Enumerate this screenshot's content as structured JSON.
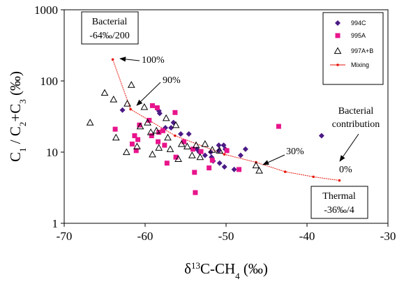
{
  "chart_data": {
    "type": "scatter",
    "x_axis": {
      "range": [
        -70,
        -30
      ],
      "ticks": [
        -70,
        -60,
        -50,
        -40,
        -30
      ],
      "tick_labels": [
        "-70",
        "-60",
        "-50",
        "-40",
        "-30"
      ],
      "label": "δ13C-CH4 (‰)"
    },
    "y_axis": {
      "scale": "log",
      "range": [
        1,
        1000
      ],
      "ticks": [
        1,
        10,
        100,
        1000
      ],
      "tick_labels": [
        "1",
        "10",
        "100",
        "1000"
      ],
      "label": "C1 / C2+C3 (‰)"
    },
    "grid": false,
    "legend": "top-right",
    "series": [
      {
        "name": "994C",
        "marker": "diamond",
        "color": "#4b1a86",
        "points": [
          [
            -62.8,
            39
          ],
          [
            -58.3,
            38
          ],
          [
            -58.2,
            35
          ],
          [
            -57.5,
            22
          ],
          [
            -56.5,
            26
          ],
          [
            -56.8,
            22
          ],
          [
            -55.6,
            18
          ],
          [
            -54.6,
            18
          ],
          [
            -53.6,
            11
          ],
          [
            -53.3,
            10
          ],
          [
            -52.6,
            9
          ],
          [
            -51.9,
            10
          ],
          [
            -51.8,
            8.5
          ],
          [
            -51.6,
            7.5
          ],
          [
            -50.9,
            12.5
          ],
          [
            -50.9,
            10.5
          ],
          [
            -50.8,
            7
          ],
          [
            -50.3,
            12.5
          ],
          [
            -50.1,
            11
          ],
          [
            -50.2,
            6.2
          ],
          [
            -49.0,
            5.7
          ],
          [
            -48.2,
            9
          ],
          [
            -47.6,
            11
          ],
          [
            -38.2,
            17
          ]
        ]
      },
      {
        "name": "995A",
        "marker": "square",
        "color": "#e8148c",
        "points": [
          [
            -63.7,
            21
          ],
          [
            -61.6,
            13
          ],
          [
            -61.3,
            17
          ],
          [
            -60.9,
            15
          ],
          [
            -61.1,
            10.5
          ],
          [
            -60.7,
            24
          ],
          [
            -59.5,
            28
          ],
          [
            -59.2,
            17
          ],
          [
            -59.1,
            45
          ],
          [
            -58.5,
            42
          ],
          [
            -58.4,
            14
          ],
          [
            -58.3,
            19
          ],
          [
            -57.8,
            20
          ],
          [
            -57.6,
            12.5
          ],
          [
            -57.3,
            7
          ],
          [
            -56.3,
            36
          ],
          [
            -56.2,
            8.5
          ],
          [
            -55.2,
            14
          ],
          [
            -54.1,
            11
          ],
          [
            -53.9,
            5.2
          ],
          [
            -53.8,
            2.7
          ],
          [
            -53.1,
            10.2
          ],
          [
            -52.1,
            6
          ],
          [
            -51.7,
            7.7
          ],
          [
            -49.9,
            10.5
          ],
          [
            -48.4,
            5.7
          ],
          [
            -43.5,
            23
          ]
        ]
      },
      {
        "name": "997A+B",
        "marker": "triangle",
        "color": "#000000",
        "points": [
          [
            -66.8,
            26
          ],
          [
            -65.0,
            68
          ],
          [
            -63.9,
            55
          ],
          [
            -63.6,
            16
          ],
          [
            -62.2,
            48
          ],
          [
            -61.7,
            88
          ],
          [
            -62.3,
            10
          ],
          [
            -61.0,
            12
          ],
          [
            -60.6,
            23
          ],
          [
            -60.1,
            43
          ],
          [
            -59.7,
            26
          ],
          [
            -59.3,
            19
          ],
          [
            -59.1,
            9.3
          ],
          [
            -58.6,
            20
          ],
          [
            -58.3,
            11.5
          ],
          [
            -57.4,
            30
          ],
          [
            -57.2,
            16
          ],
          [
            -56.9,
            11
          ],
          [
            -56.2,
            24
          ],
          [
            -55.9,
            8
          ],
          [
            -55.5,
            13
          ],
          [
            -54.8,
            12
          ],
          [
            -54.2,
            9
          ],
          [
            -53.7,
            12.5
          ],
          [
            -53.2,
            8.5
          ],
          [
            -52.6,
            13
          ],
          [
            -51.7,
            10.8
          ],
          [
            -50.8,
            10.5
          ],
          [
            -46.3,
            6.5
          ],
          [
            -45.9,
            5.5
          ]
        ]
      },
      {
        "name": "Mixing",
        "type": "line",
        "marker": "dot",
        "color": "#e8140a",
        "points": [
          [
            -64,
            200
          ],
          [
            -61.8,
            40
          ],
          [
            -56.3,
            17
          ],
          [
            -50.2,
            9.3
          ],
          [
            -46.3,
            7.2
          ],
          [
            -42.7,
            5.3
          ],
          [
            -39.2,
            4.5
          ],
          [
            -36,
            4.0
          ]
        ]
      }
    ],
    "annotations": {
      "bacterial_box": [
        "Bacterial",
        "-64‰/200"
      ],
      "thermal_box": [
        "Thermal",
        "-36‰/4"
      ],
      "pct_100": "100%",
      "pct_90": "90%",
      "pct_30": "30%",
      "pct_0": "0%",
      "bacterial_contribution": [
        "Bacterial",
        "contribution"
      ]
    }
  }
}
